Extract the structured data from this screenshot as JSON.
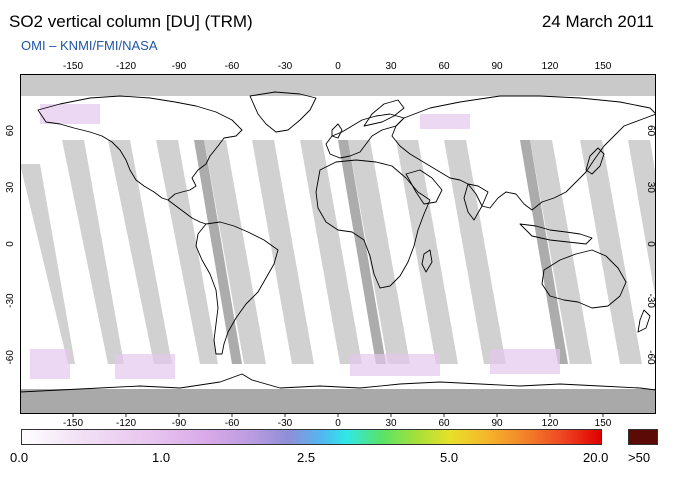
{
  "header": {
    "title": "SO2 vertical column [DU] (TRM)",
    "date": "24 March 2011",
    "credit": "OMI  –  KNMI/FMI/NASA"
  },
  "map": {
    "lon_range": [
      -180,
      180
    ],
    "lat_range": [
      -90,
      90
    ],
    "lon_ticks": [
      -150,
      -120,
      -90,
      -60,
      -30,
      0,
      30,
      60,
      90,
      120,
      150
    ],
    "lat_ticks": [
      60,
      30,
      0,
      -30,
      -60
    ],
    "lon_tick_labels": [
      "-150",
      "-120",
      "-90",
      "-60",
      "-30",
      "0",
      "30",
      "60",
      "90",
      "120",
      "150"
    ],
    "lat_tick_labels": [
      "60",
      "30",
      "0",
      "-30",
      "-60"
    ],
    "colors": {
      "gap_light": "#cfcfcf",
      "gap_dark": "#a8a8a8",
      "no_data": "#a9a9a9",
      "coastline": "#000000"
    }
  },
  "colorbar": {
    "labels": [
      "0.0",
      "1.0",
      "2.5",
      "5.0",
      "20.0"
    ],
    "overflow_label": ">50",
    "overflow_color": "#5c0a06"
  }
}
